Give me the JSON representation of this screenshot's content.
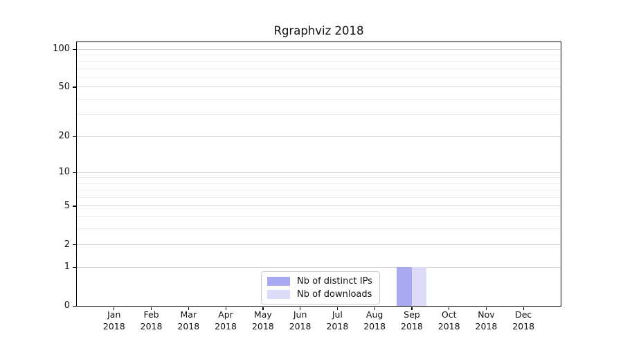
{
  "chart_data": {
    "type": "bar",
    "title": "Rgraphviz 2018",
    "categories": [
      "Jan 2018",
      "Feb 2018",
      "Mar 2018",
      "Apr 2018",
      "May 2018",
      "Jun 2018",
      "Jul 2018",
      "Aug 2018",
      "Sep 2018",
      "Oct 2018",
      "Nov 2018",
      "Dec 2018"
    ],
    "series": [
      {
        "name": "Nb of distinct IPs",
        "color": "#a9a9f2",
        "values": [
          0,
          0,
          0,
          0,
          0,
          0,
          0,
          0,
          1,
          0,
          0,
          0
        ]
      },
      {
        "name": "Nb of downloads",
        "color": "#dcdcf9",
        "values": [
          0,
          0,
          0,
          0,
          0,
          0,
          0,
          0,
          1,
          0,
          0,
          0
        ]
      }
    ],
    "xlabel": "",
    "ylabel": "",
    "yscale": "log1p",
    "yticks": [
      0,
      1,
      2,
      5,
      10,
      20,
      50,
      100
    ],
    "ylim": [
      0,
      113.4
    ],
    "grid": true,
    "legend_position": "lower center inside"
  },
  "colors": {
    "background": "#ffffff",
    "axis": "#000000",
    "grid_major": "#d5d5d5",
    "grid_minor": "#eeeeee",
    "text": "#111111"
  }
}
